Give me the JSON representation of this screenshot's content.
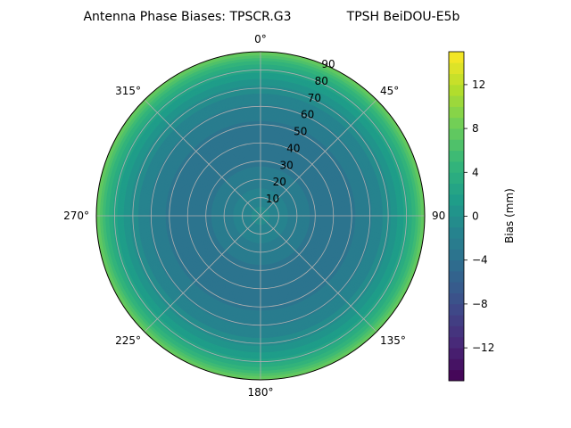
{
  "chart_data": {
    "type": "heatmap",
    "projection": "polar",
    "title_left": "Antenna Phase Biases: TPSCR.G3",
    "title_right": "TPSH BeiDOU-E5b",
    "theta_direction": "clockwise",
    "theta_zero": "top",
    "theta_ticks": [
      0,
      45,
      90,
      135,
      180,
      225,
      270,
      315
    ],
    "theta_tick_labels": [
      "0°",
      "45°",
      "90",
      "135°",
      "180°",
      "225°",
      "270°",
      "315°"
    ],
    "r_ticks": [
      10,
      20,
      30,
      40,
      50,
      60,
      70,
      80,
      90
    ],
    "r_tick_labels": [
      "10",
      "20",
      "30",
      "40",
      "50",
      "60",
      "70",
      "80",
      "90"
    ],
    "r_range": [
      0,
      90
    ],
    "grid": true,
    "colormap": "viridis",
    "colorbar": {
      "label": "Bias (mm)",
      "range": [
        -15,
        15
      ],
      "levels": 30,
      "ticks": [
        -12,
        -8,
        -4,
        0,
        4,
        8,
        12
      ],
      "tick_labels": [
        "−12",
        "−8",
        "−4",
        "0",
        "4",
        "8",
        "12"
      ]
    },
    "radial_profile": {
      "r": [
        0,
        10,
        20,
        30,
        40,
        50,
        60,
        70,
        80,
        85,
        90
      ],
      "bias": [
        -0.5,
        -1.5,
        -2.5,
        -3.2,
        -3.5,
        -3.2,
        -2.2,
        -0.5,
        2.5,
        5.0,
        8.5
      ]
    }
  }
}
